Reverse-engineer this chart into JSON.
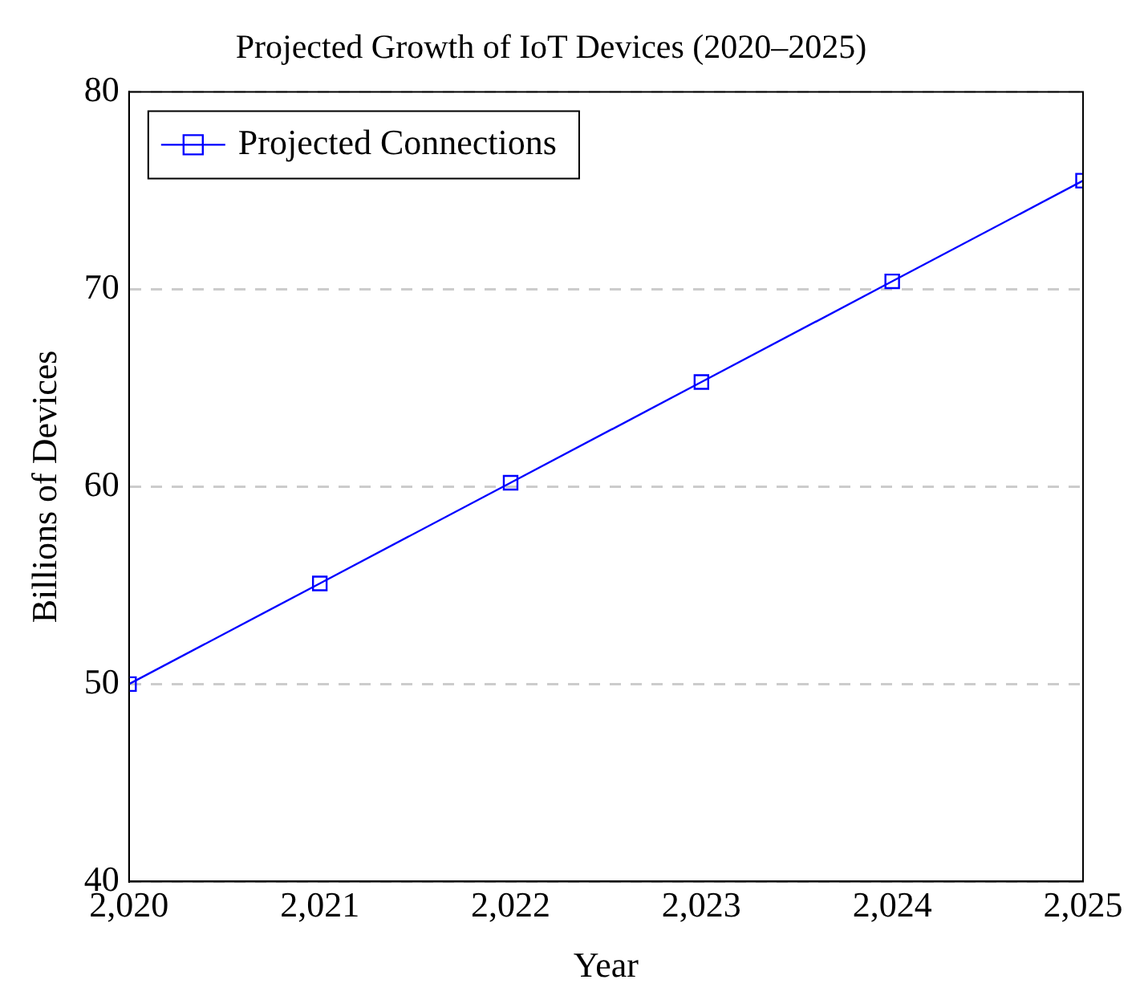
{
  "chart_data": {
    "type": "line",
    "title": "Projected Growth of IoT Devices (2020–2025)",
    "xlabel": "Year",
    "ylabel": "Billions of Devices",
    "x": [
      2020,
      2021,
      2022,
      2023,
      2024,
      2025
    ],
    "series": [
      {
        "name": "Projected Connections",
        "color": "#0000ff",
        "values": [
          50,
          55.1,
          60.2,
          65.3,
          70.4,
          75.5
        ]
      }
    ],
    "xlim": [
      2020,
      2025
    ],
    "xticks": [
      {
        "value": 2020,
        "label": "2,020"
      },
      {
        "value": 2021,
        "label": "2,021"
      },
      {
        "value": 2022,
        "label": "2,022"
      },
      {
        "value": 2023,
        "label": "2,023"
      },
      {
        "value": 2024,
        "label": "2,024"
      },
      {
        "value": 2025,
        "label": "2,025"
      }
    ],
    "ylim": [
      40,
      80
    ],
    "yticks": [
      40,
      50,
      60,
      70,
      80
    ],
    "grid": "y",
    "legend": "top left",
    "marker": "square",
    "line_style": "solid"
  }
}
